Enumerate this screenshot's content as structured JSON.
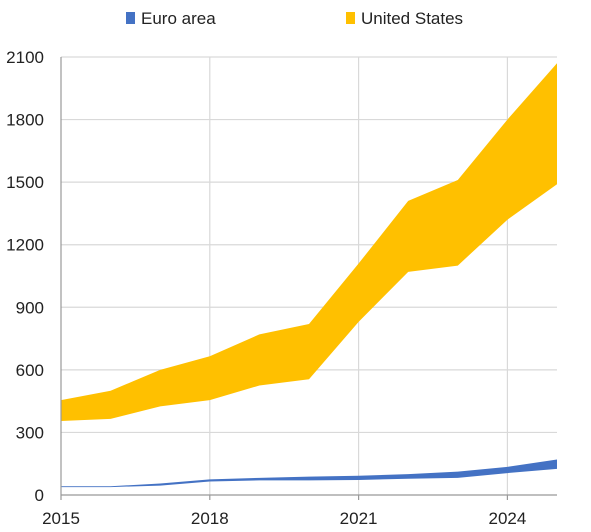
{
  "chart_data": {
    "type": "area",
    "subtype": "range-band",
    "title": "",
    "xlabel": "",
    "ylabel": "",
    "x": [
      2015,
      2016,
      2017,
      2018,
      2019,
      2020,
      2021,
      2022,
      2023,
      2024,
      2025
    ],
    "xlim": [
      2015,
      2025
    ],
    "ylim": [
      0,
      2100
    ],
    "xticks": [
      2015,
      2018,
      2021,
      2024
    ],
    "yticks": [
      0,
      300,
      600,
      900,
      1200,
      1500,
      1800,
      2100
    ],
    "grid": true,
    "legend_position": "top",
    "series": [
      {
        "name": "Euro area",
        "color": "#4472C4",
        "low": [
          38,
          38,
          45,
          65,
          70,
          70,
          72,
          78,
          82,
          105,
          125
        ],
        "high": [
          42,
          42,
          55,
          75,
          82,
          88,
          92,
          100,
          112,
          135,
          170
        ]
      },
      {
        "name": "United States",
        "color": "#FFC000",
        "low": [
          355,
          365,
          425,
          455,
          525,
          555,
          830,
          1070,
          1100,
          1320,
          1490
        ],
        "high": [
          455,
          500,
          600,
          665,
          770,
          820,
          1110,
          1410,
          1510,
          1800,
          2070
        ]
      }
    ]
  }
}
